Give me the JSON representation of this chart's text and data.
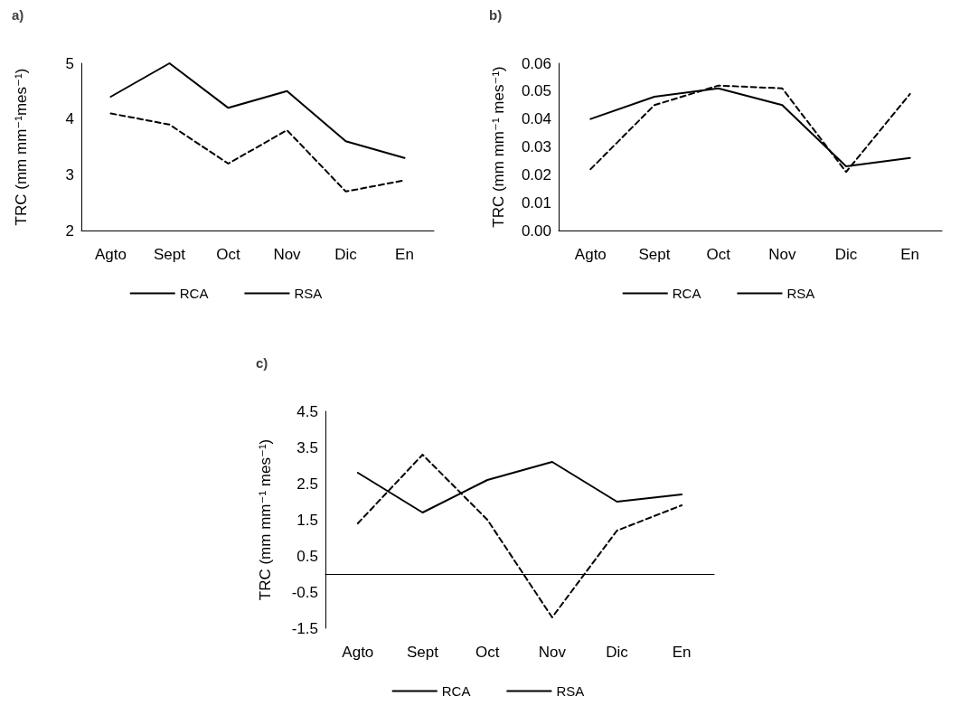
{
  "chart_data": [
    {
      "type": "line",
      "title": "a)",
      "ylabel": "TRC (mm mm⁻¹mes⁻¹)",
      "categories": [
        "Agto",
        "Sept",
        "Oct",
        "Nov",
        "Dic",
        "En"
      ],
      "series": [
        {
          "name": "RCA",
          "color": "#000000",
          "line_style": "solid",
          "values": [
            4.4,
            5.0,
            4.2,
            4.5,
            3.6,
            3.3
          ]
        },
        {
          "name": "RSA",
          "color": "#000000",
          "line_style": "dashed",
          "values": [
            4.1,
            3.9,
            3.2,
            3.8,
            2.7,
            2.9
          ]
        }
      ],
      "ylim": [
        2,
        5
      ],
      "yticks": [
        2,
        3,
        4,
        5
      ],
      "grid": false,
      "legend": "bottom",
      "marker": "none"
    },
    {
      "type": "line",
      "title": "b)",
      "ylabel": "TRC (mm mm⁻¹ mes⁻¹)",
      "categories": [
        "Agto",
        "Sept",
        "Oct",
        "Nov",
        "Dic",
        "En"
      ],
      "series": [
        {
          "name": "RCA",
          "color": "#000000",
          "line_style": "solid",
          "values": [
            0.04,
            0.048,
            0.051,
            0.045,
            0.023,
            0.026
          ]
        },
        {
          "name": "RSA",
          "color": "#000000",
          "line_style": "dashed",
          "values": [
            0.022,
            0.045,
            0.052,
            0.051,
            0.021,
            0.049
          ]
        }
      ],
      "ylim": [
        0,
        0.06
      ],
      "yticks": [
        {
          "value": 0,
          "label": "0.00"
        },
        0.01,
        0.02,
        0.03,
        0.04,
        0.05,
        0.06
      ],
      "grid": false,
      "legend": "bottom",
      "marker": "none"
    },
    {
      "type": "line",
      "title": "c)",
      "ylabel": "TRC (mm mm⁻¹ mes⁻¹)",
      "categories": [
        "Agto",
        "Sept",
        "Oct",
        "Nov",
        "Dic",
        "En"
      ],
      "series": [
        {
          "name": "RCA",
          "color": "#000000",
          "line_style": "solid",
          "values": [
            2.8,
            1.7,
            2.6,
            3.1,
            2.0,
            2.2
          ]
        },
        {
          "name": "RSA",
          "color": "#000000",
          "line_style": "dashed",
          "values": [
            1.4,
            3.3,
            1.5,
            -1.2,
            1.2,
            1.9
          ]
        }
      ],
      "ylim": [
        -1.5,
        4.5
      ],
      "yticks": [
        -1.5,
        -0.5,
        0.5,
        1.5,
        2.5,
        3.5,
        4.5
      ],
      "grid": false,
      "legend": "bottom",
      "marker": "none"
    }
  ]
}
